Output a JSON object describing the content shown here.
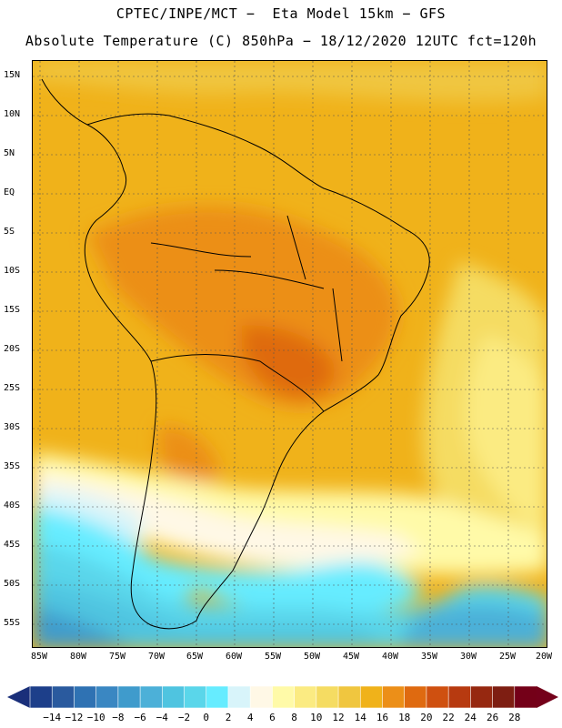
{
  "header": {
    "title_line1": "CPTEC/INPE/MCT −  Eta Model 15km − GFS",
    "title_line2": "Absolute Temperature (C) 850hPa − 18/12/2020 12UTC fct=120h"
  },
  "map": {
    "lat_labels": [
      "15N",
      "10N",
      "5N",
      "EQ",
      "5S",
      "10S",
      "15S",
      "20S",
      "25S",
      "30S",
      "35S",
      "40S",
      "45S",
      "50S",
      "55S"
    ],
    "lon_labels": [
      "85W",
      "80W",
      "75W",
      "70W",
      "65W",
      "60W",
      "55W",
      "50W",
      "45W",
      "40W",
      "35W",
      "30W",
      "25W",
      "20W"
    ],
    "field": "Absolute Temperature at 850hPa",
    "units": "C"
  },
  "colorbar": {
    "labels": [
      "-14",
      "-12",
      "-10",
      "-8",
      "-6",
      "-4",
      "-2",
      "0",
      "2",
      "4",
      "6",
      "8",
      "10",
      "12",
      "14",
      "16",
      "18",
      "20",
      "22",
      "24",
      "26",
      "28"
    ],
    "colors": [
      "#1d3f8a",
      "#2a5a9e",
      "#2f72b3",
      "#3a87c2",
      "#3f9bcc",
      "#4cb0d8",
      "#4fc4e0",
      "#5ad6ea",
      "#66ecff",
      "#d8f4fa",
      "#fff8e6",
      "#fffaa8",
      "#fbeb82",
      "#f5dc62",
      "#f0c63f",
      "#f0b21a",
      "#ec8f18",
      "#df6a10",
      "#cf5010",
      "#b73a10",
      "#962810",
      "#7e1e12",
      "#740018"
    ],
    "end_left_color": "#1a2f7a",
    "end_right_color": "#74001a"
  }
}
